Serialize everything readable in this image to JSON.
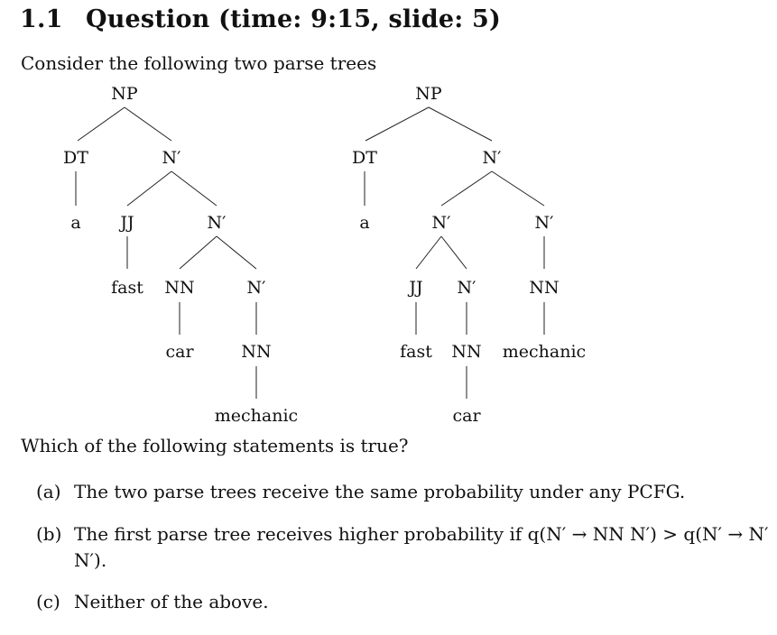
{
  "heading": {
    "number": "1.1",
    "title": "Question (time: 9:15, slide: 5)"
  },
  "intro": "Consider the following two parse trees",
  "tree1": {
    "root": "NP",
    "dt": "DT",
    "a": "a",
    "n1": "N′",
    "jj": "JJ",
    "n2": "N′",
    "fast": "fast",
    "nn1": "NN",
    "n3": "N′",
    "car": "car",
    "nn2": "NN",
    "mechanic": "mechanic"
  },
  "tree2": {
    "root": "NP",
    "dt": "DT",
    "a": "a",
    "n1": "N′",
    "n2": "N′",
    "n3": "N′",
    "jj": "JJ",
    "n4": "N′",
    "nn_right": "NN",
    "fast": "fast",
    "nn_mid": "NN",
    "mechanic": "mechanic",
    "car": "car"
  },
  "question": "Which of the following statements is true?",
  "options": [
    {
      "label": "(a)",
      "text": "The two parse trees receive the same probability under any PCFG."
    },
    {
      "label": "(b)",
      "text": "The first parse tree receives higher probability if q(N′ → NN N′) > q(N′ → N′ N′)."
    },
    {
      "label": "(c)",
      "text": "Neither of the above."
    }
  ]
}
